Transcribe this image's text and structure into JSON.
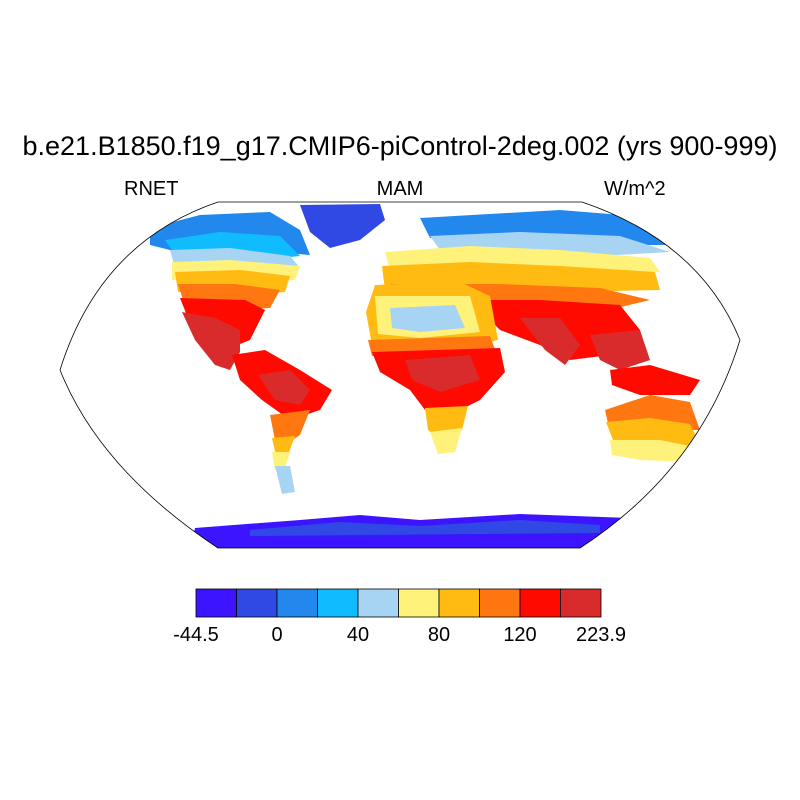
{
  "title": "b.e21.B1850.f19_g17.CMIP6-piControl-2deg.002 (yrs 900-999)",
  "variable": "RNET",
  "season": "MAM",
  "units": "W/m^2",
  "projection": "robinson",
  "colorbar": {
    "colors": [
      "#3c14ff",
      "#3049e5",
      "#2288ee",
      "#11bbff",
      "#a6d4f2",
      "#fff27a",
      "#ffbb11",
      "#ff7711",
      "#ff0a00",
      "#d92b2b"
    ],
    "labels": [
      "-44.5",
      "0",
      "40",
      "80",
      "120",
      "223.9"
    ]
  }
}
